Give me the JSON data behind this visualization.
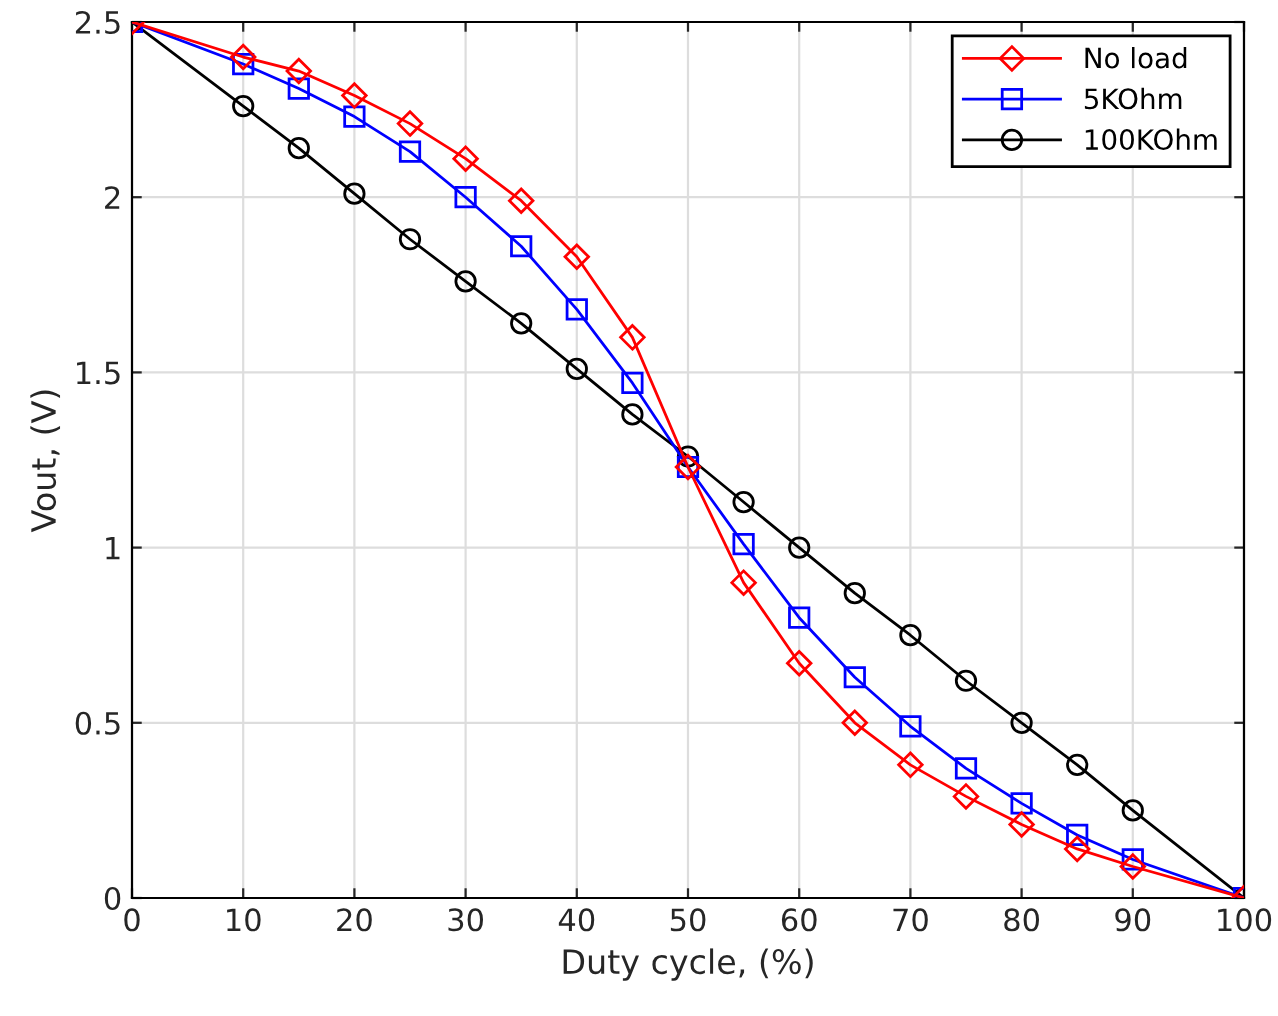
{
  "chart_data": {
    "type": "line",
    "xlabel": "Duty cycle, (%)",
    "ylabel": "Vout, (V)",
    "x": [
      0,
      10,
      15,
      20,
      25,
      30,
      35,
      40,
      45,
      50,
      55,
      60,
      65,
      70,
      75,
      80,
      85,
      90,
      100
    ],
    "series": [
      {
        "name": "No load",
        "color": "#ff0000",
        "marker": "diamond",
        "values": [
          2.5,
          2.4,
          2.36,
          2.29,
          2.21,
          2.11,
          1.99,
          1.83,
          1.6,
          1.23,
          0.9,
          0.67,
          0.5,
          0.38,
          0.29,
          0.21,
          0.14,
          0.09,
          0
        ]
      },
      {
        "name": "5KOhm",
        "color": "#0000ff",
        "marker": "square",
        "values": [
          2.5,
          2.38,
          2.31,
          2.23,
          2.13,
          2.0,
          1.86,
          1.68,
          1.47,
          1.23,
          1.01,
          0.8,
          0.63,
          0.49,
          0.37,
          0.27,
          0.18,
          0.11,
          0
        ]
      },
      {
        "name": "100KOhm",
        "color": "#000000",
        "marker": "circle",
        "values": [
          2.5,
          2.26,
          2.14,
          2.01,
          1.88,
          1.76,
          1.64,
          1.51,
          1.38,
          1.26,
          1.13,
          1.0,
          0.87,
          0.75,
          0.62,
          0.5,
          0.38,
          0.25,
          0
        ]
      }
    ],
    "xlim": [
      0,
      100
    ],
    "ylim": [
      0,
      2.5
    ],
    "xticks": [
      0,
      10,
      20,
      30,
      40,
      50,
      60,
      70,
      80,
      90,
      100
    ],
    "yticks": [
      0,
      0.5,
      1,
      1.5,
      2,
      2.5
    ],
    "grid": true,
    "legend": "top right",
    "line_style": "solid"
  }
}
